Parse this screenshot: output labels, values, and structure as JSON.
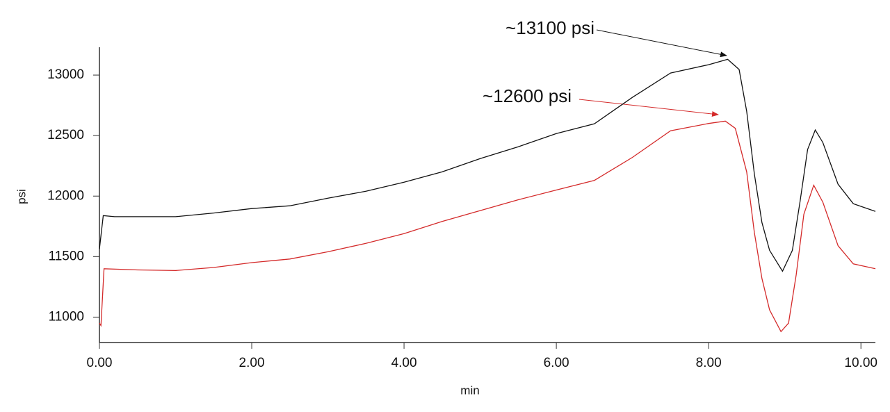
{
  "chart_data": {
    "type": "line",
    "xlabel": "min",
    "ylabel": "psi",
    "xlim": [
      0,
      10.19
    ],
    "ylim": [
      10790,
      13230
    ],
    "xticks": [
      {
        "value": 0,
        "label": "0.00"
      },
      {
        "value": 2,
        "label": "2.00"
      },
      {
        "value": 4,
        "label": "4.00"
      },
      {
        "value": 6,
        "label": "6.00"
      },
      {
        "value": 8,
        "label": "8.00"
      },
      {
        "value": 10,
        "label": "10.00"
      }
    ],
    "yticks": [
      11000,
      11500,
      12000,
      12500,
      13000
    ],
    "annotations": [
      "~13100 psi",
      "~12600 psi"
    ],
    "series": [
      {
        "color": "#111111",
        "x": [
          0,
          0.05,
          0.2,
          0.5,
          1.0,
          1.5,
          2.0,
          2.5,
          3.0,
          3.5,
          4.0,
          4.5,
          5.0,
          5.5,
          6.0,
          6.5,
          7.0,
          7.5,
          8.0,
          8.25,
          8.4,
          8.5,
          8.6,
          8.7,
          8.8,
          8.97,
          9.1,
          9.2,
          9.3,
          9.4,
          9.5,
          9.7,
          9.9,
          10.19
        ],
        "values": [
          11563,
          11839,
          11830,
          11830,
          11830,
          11860,
          11897,
          11920,
          11983,
          12040,
          12115,
          12200,
          12310,
          12408,
          12517,
          12598,
          12816,
          13017,
          13086,
          13130,
          13046,
          12700,
          12184,
          11782,
          11552,
          11379,
          11552,
          11954,
          12385,
          12546,
          12443,
          12098,
          11937,
          11874
        ]
      },
      {
        "color": "#d42a2a",
        "x": [
          0,
          0.02,
          0.06,
          0.5,
          1.0,
          1.5,
          2.0,
          2.5,
          3.0,
          3.5,
          4.0,
          4.5,
          5.0,
          5.5,
          6.0,
          6.5,
          7.0,
          7.5,
          8.0,
          8.22,
          8.35,
          8.5,
          8.6,
          8.7,
          8.8,
          8.95,
          9.05,
          9.15,
          9.25,
          9.38,
          9.5,
          9.7,
          9.9,
          10.19
        ],
        "values": [
          10950,
          10930,
          11400,
          11390,
          11385,
          11410,
          11450,
          11480,
          11540,
          11610,
          11690,
          11790,
          11880,
          11970,
          12050,
          12130,
          12320,
          12540,
          12600,
          12620,
          12560,
          12200,
          11700,
          11320,
          11060,
          10880,
          10950,
          11350,
          11850,
          12090,
          11950,
          11590,
          11440,
          11400
        ]
      }
    ]
  }
}
